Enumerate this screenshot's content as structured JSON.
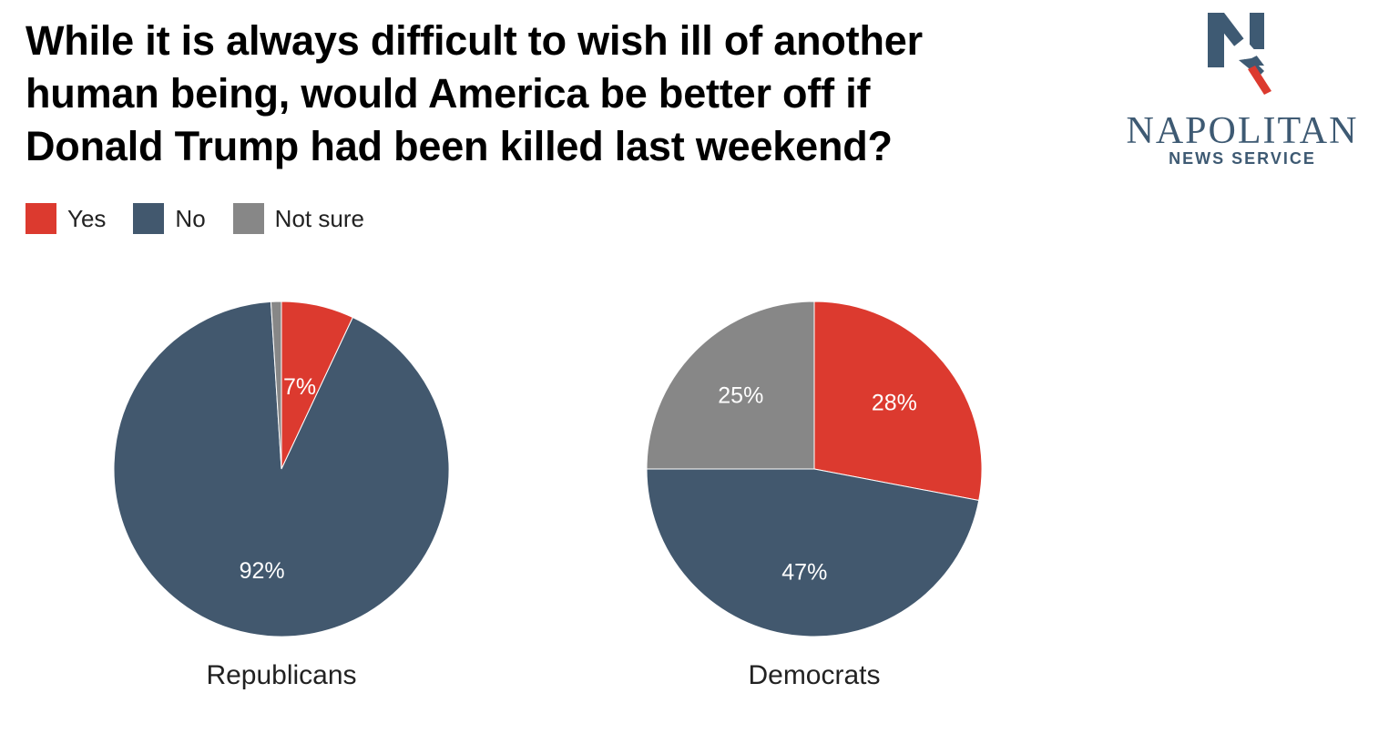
{
  "title_lines": [
    "While it is always difficult to wish ill of another",
    "human being, would America be better off if",
    "Donald Trump had been killed last weekend?"
  ],
  "logo": {
    "letter": "N",
    "name": "NAPOLITAN",
    "subtitle": "NEWS SERVICE"
  },
  "colors": {
    "yes": "#dc3a2f",
    "no": "#42586e",
    "not_sure": "#878787",
    "brand": "#3e5a73"
  },
  "chart_data": {
    "type": "pie",
    "title": "While it is always difficult to wish ill of another human being, would America be better off if Donald Trump had been killed last weekend?",
    "legend": [
      "Yes",
      "No",
      "Not sure"
    ],
    "legend_position": "top-left",
    "charts": [
      {
        "label": "Republicans",
        "slices": [
          {
            "name": "Yes",
            "value": 7,
            "label": "7%"
          },
          {
            "name": "No",
            "value": 92,
            "label": "92%"
          },
          {
            "name": "Not sure",
            "value": 1,
            "label": ""
          }
        ]
      },
      {
        "label": "Democrats",
        "slices": [
          {
            "name": "Yes",
            "value": 28,
            "label": "28%"
          },
          {
            "name": "No",
            "value": 47,
            "label": "47%"
          },
          {
            "name": "Not sure",
            "value": 25,
            "label": "25%"
          }
        ]
      }
    ]
  }
}
